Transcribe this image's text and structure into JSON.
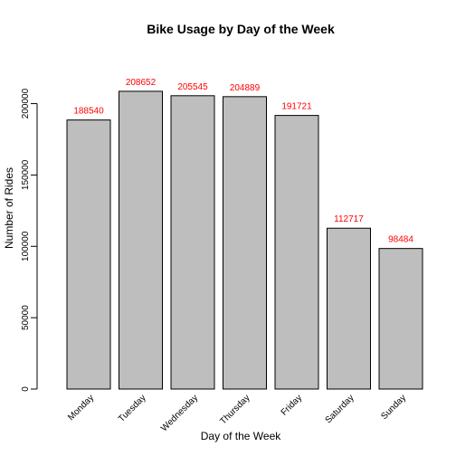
{
  "chart_data": {
    "type": "bar",
    "title": "Bike Usage by Day of the Week",
    "xlabel": "Day of the Week",
    "ylabel": "Number of Rides",
    "categories": [
      "Monday",
      "Tuesday",
      "Wednesday",
      "Thursday",
      "Friday",
      "Saturday",
      "Sunday"
    ],
    "values": [
      188540,
      208652,
      205545,
      204889,
      191721,
      112717,
      98484
    ],
    "data_labels": [
      "188540",
      "208652",
      "205545",
      "204889",
      "191721",
      "112717",
      "98484"
    ],
    "ylim": [
      0,
      220000
    ],
    "yticks": [
      0,
      50000,
      100000,
      150000,
      200000
    ],
    "ytick_labels": [
      "0",
      "50000",
      "100000",
      "150000",
      "200000"
    ],
    "grid": false,
    "legend": "none",
    "colors": {
      "bar_fill": "#bebebe",
      "bar_stroke": "#000000",
      "data_label": "#ff0000",
      "axis": "#000000"
    }
  }
}
